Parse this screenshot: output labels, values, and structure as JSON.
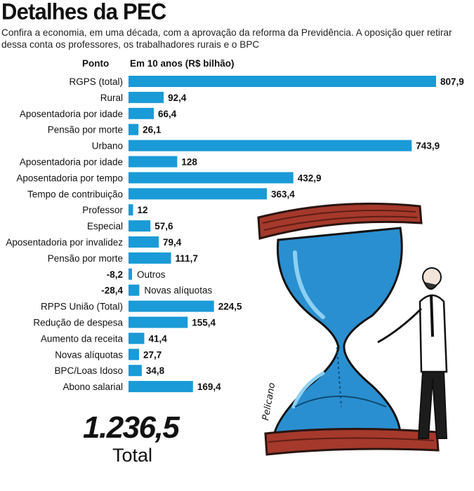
{
  "title": "Detalhes da PEC",
  "subtitle": "Confira a economia, em uma década, com a aprovação da reforma da Previdência. A oposição quer retirar dessa conta os professores, os trabalhadores rurais e o BPC",
  "columns": {
    "label": "Ponto",
    "value": "Em 10 anos (R$ bilhão)"
  },
  "total": {
    "value": "1.236,5",
    "label": "Total"
  },
  "illustration": {
    "signature": "Pelicano"
  },
  "colors": {
    "bar": "#1a9ad6",
    "wood": "#a5392b",
    "glass": "#2a8fd0"
  },
  "chart_data": {
    "type": "bar",
    "orientation": "horizontal",
    "categories": [
      "RGPS (total)",
      "Rural",
      "Aposentadoria por idade",
      "Pensão por morte",
      "Urbano",
      "Aposentadoria por idade",
      "Aposentadoria por tempo",
      "Tempo de contribuição",
      "Professor",
      "Especial",
      "Aposentadoria por invalidez",
      "Pensão por morte",
      "Outros",
      "Novas alíquotas",
      "RPPS União (Total)",
      "Redução de despesa",
      "Aumento da receita",
      "Novas alíquotas",
      "BPC/Loas Idoso",
      "Abono salarial"
    ],
    "values": [
      807.9,
      92.4,
      66.4,
      26.1,
      743.9,
      128,
      432.9,
      363.4,
      12,
      57.6,
      79.4,
      111.7,
      -8.2,
      -28.4,
      224.5,
      155.4,
      41.4,
      27.7,
      34.8,
      169.4
    ],
    "value_labels": [
      "807,9",
      "92,4",
      "66,4",
      "26,1",
      "743,9",
      "128",
      "432,9",
      "363,4",
      "12",
      "57,6",
      "79,4",
      "111,7",
      "-8,2",
      "-28,4",
      "224,5",
      "155,4",
      "41,4",
      "27,7",
      "34,8",
      "169,4"
    ],
    "xlim": [
      0,
      807.9
    ],
    "grid": false
  }
}
